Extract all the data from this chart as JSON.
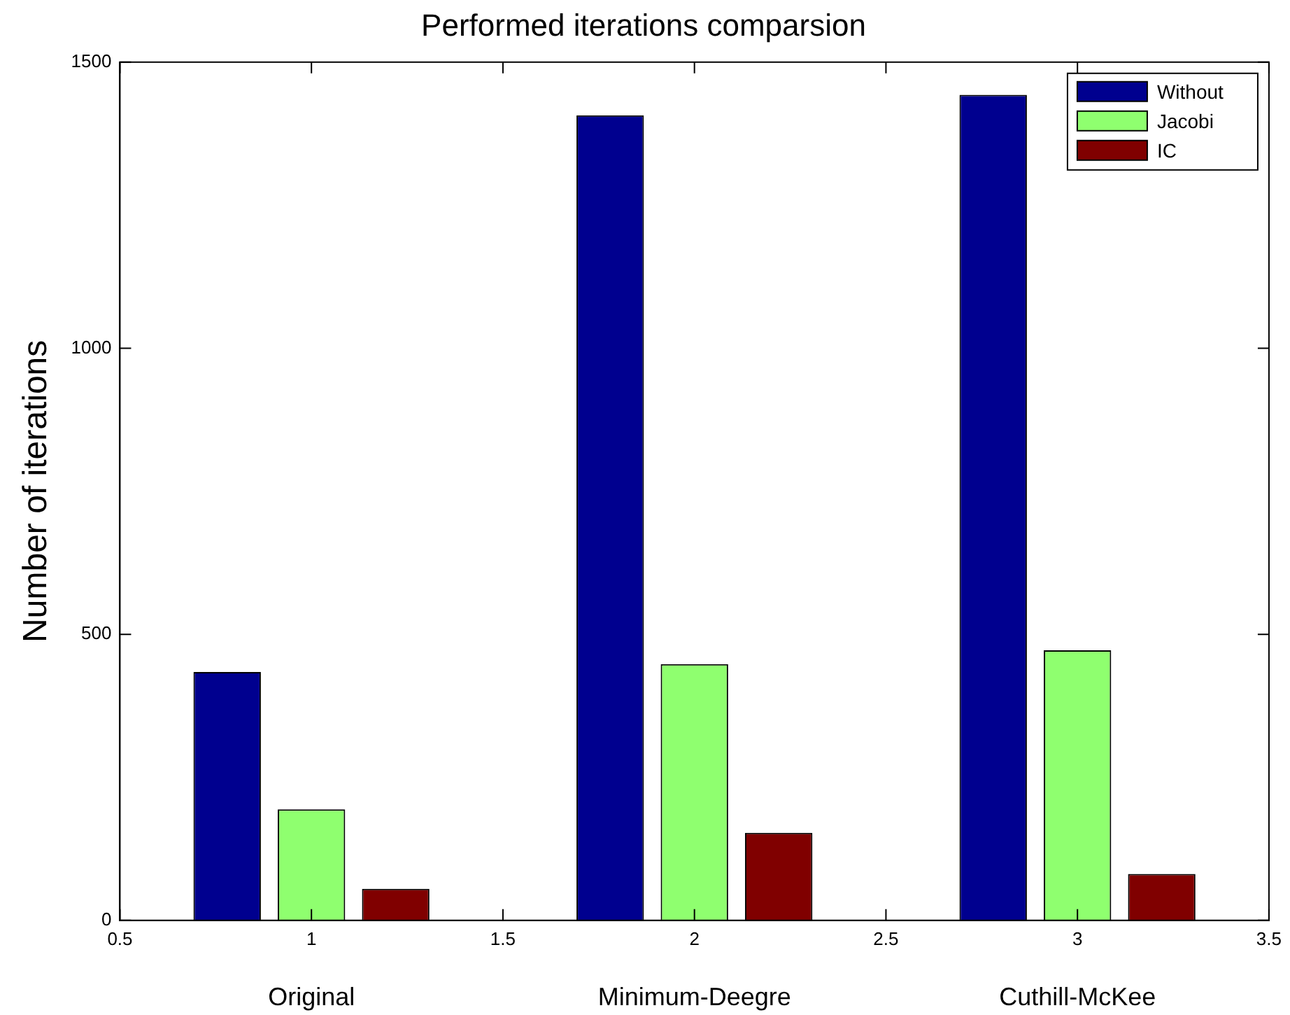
{
  "chart_data": {
    "type": "bar",
    "title": "Performed iterations comparsion",
    "ylabel": "Number of iterations",
    "xlim": [
      0.5,
      3.5
    ],
    "xticks": [
      0.5,
      1,
      1.5,
      2,
      2.5,
      3,
      3.5
    ],
    "ylim": [
      0,
      1500
    ],
    "yticks": [
      0,
      500,
      1000,
      1500
    ],
    "series": [
      {
        "name": "Without",
        "color": "#00008f",
        "x": [
          0.78,
          1.78,
          2.78
        ],
        "values": [
          434,
          1407,
          1443
        ]
      },
      {
        "name": "Jacobi",
        "color": "#8fff6f",
        "x": [
          1,
          2,
          3
        ],
        "values": [
          194,
          448,
          472
        ]
      },
      {
        "name": "IC",
        "color": "#800000",
        "x": [
          1.22,
          2.22,
          3.22
        ],
        "values": [
          55,
          153,
          81
        ]
      }
    ],
    "annotations": [
      "Original",
      "Minimum-Deegre",
      "Cuthill-McKee"
    ],
    "grid": false,
    "legend": "top right"
  }
}
